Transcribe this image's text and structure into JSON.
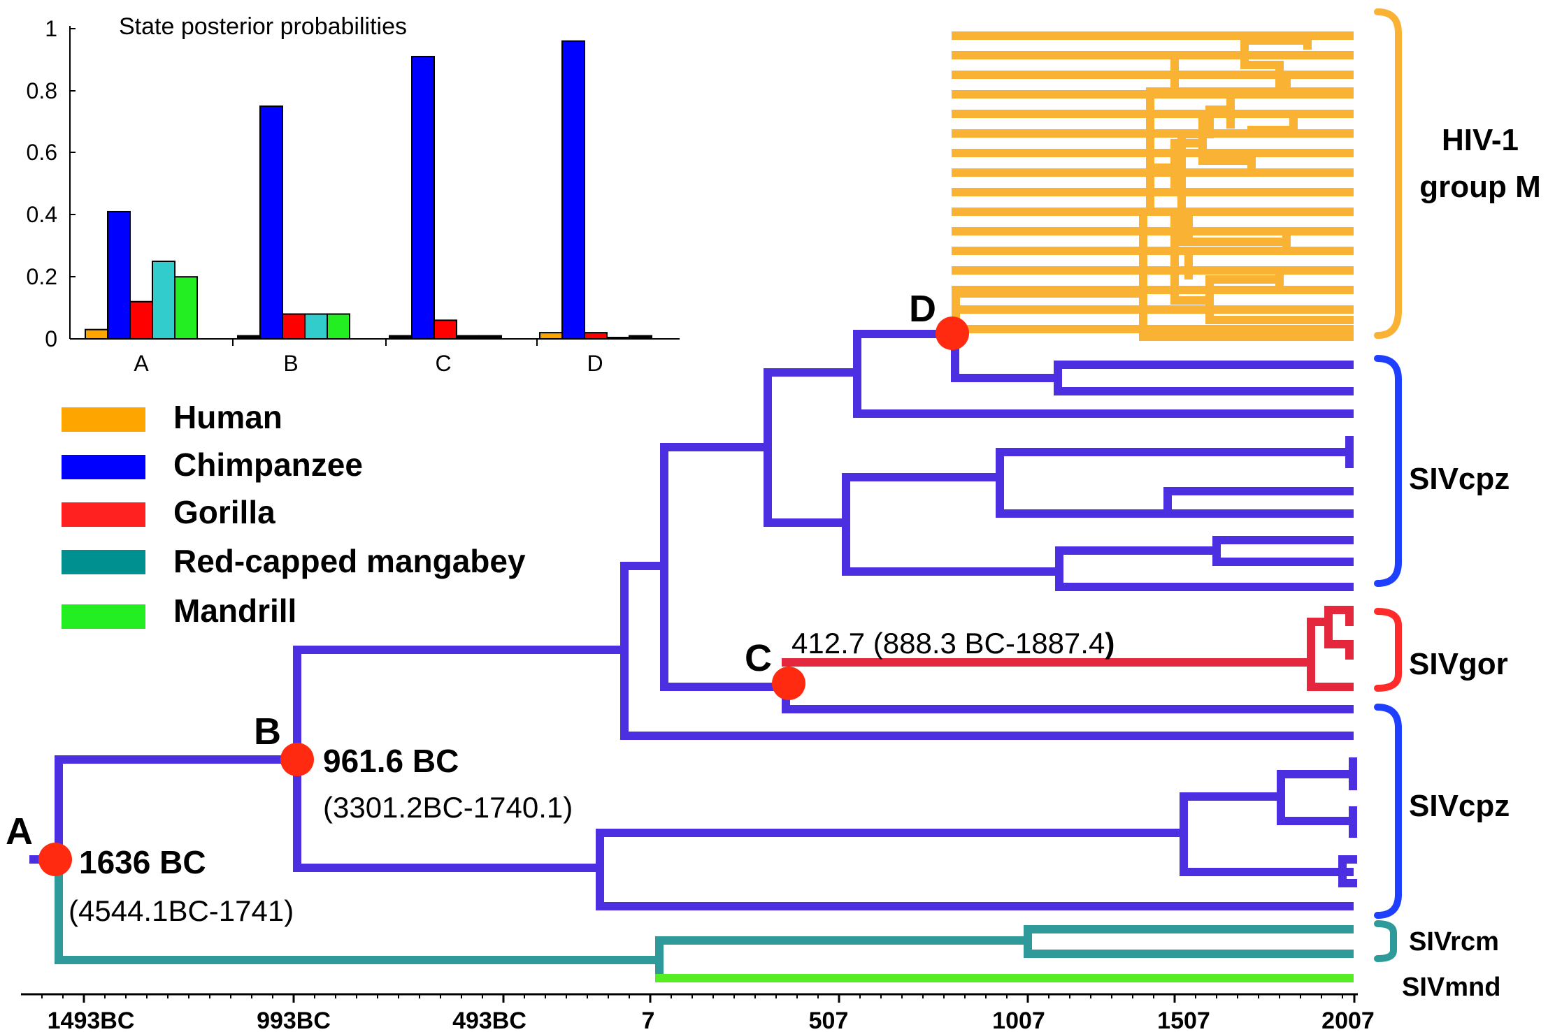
{
  "inset_chart": {
    "title": "State posterior probabilities",
    "y_ticks": [
      "1",
      "0.8",
      "0.6",
      "0.4",
      "0.2",
      "0"
    ],
    "categories": [
      "A",
      "B",
      "C",
      "D"
    ]
  },
  "chart_data": {
    "type": "bar",
    "title": "State posterior probabilities",
    "categories": [
      "A",
      "B",
      "C",
      "D"
    ],
    "ylim": [
      0,
      1
    ],
    "series": [
      {
        "name": "Human",
        "color": "#FFA500",
        "values": [
          0.03,
          0.01,
          0.01,
          0.02
        ]
      },
      {
        "name": "Chimpanzee",
        "color": "#0000FF",
        "values": [
          0.41,
          0.75,
          0.91,
          0.96
        ]
      },
      {
        "name": "Gorilla",
        "color": "#FF0000",
        "values": [
          0.12,
          0.08,
          0.06,
          0.02
        ]
      },
      {
        "name": "Red-capped mangabey",
        "color": "#33CCCC",
        "values": [
          0.25,
          0.08,
          0.01,
          0.0
        ]
      },
      {
        "name": "Mandrill",
        "color": "#22EE22",
        "values": [
          0.2,
          0.08,
          0.01,
          0.01
        ]
      }
    ]
  },
  "legend": {
    "items": [
      {
        "label": "Human",
        "color": "#FFA500"
      },
      {
        "label": "Chimpanzee",
        "color": "#0000FF"
      },
      {
        "label": "Gorilla",
        "color": "#FF2020"
      },
      {
        "label": "Red-capped mangabey",
        "color": "#009090"
      },
      {
        "label": "Mandrill",
        "color": "#22EE22"
      }
    ]
  },
  "tree": {
    "colors": {
      "human": "#F9B233",
      "chimp": "#4B2FE0",
      "gorilla": "#E5273E",
      "rcm": "#2E9A9A",
      "mandrill": "#55EE22",
      "node": "#FF2A10"
    },
    "nodes": {
      "a": {
        "label": "A",
        "date": "1636 BC",
        "interval": "(4544.1BC-1741)"
      },
      "b": {
        "label": "B",
        "date": "961.6 BC",
        "interval": "(3301.2BC-1740.1)"
      },
      "c": {
        "label": "C",
        "date_interval": "412.7 (888.3 BC-1887.4",
        "close_paren": ")"
      },
      "d": {
        "label": "D"
      }
    },
    "clades": {
      "hiv_line1": "HIV-1",
      "hiv_line2": "group M",
      "sivcpz_upper": "SIVcpz",
      "sivgor": "SIVgor",
      "sivcpz_lower": "SIVcpz",
      "sivrcm": "SIVrcm",
      "sivmnd": "SIVmnd"
    }
  },
  "time_axis": {
    "ticks": [
      "1493BC",
      "993BC",
      "493BC",
      "7",
      "507",
      "1007",
      "1507",
      "2007"
    ]
  }
}
